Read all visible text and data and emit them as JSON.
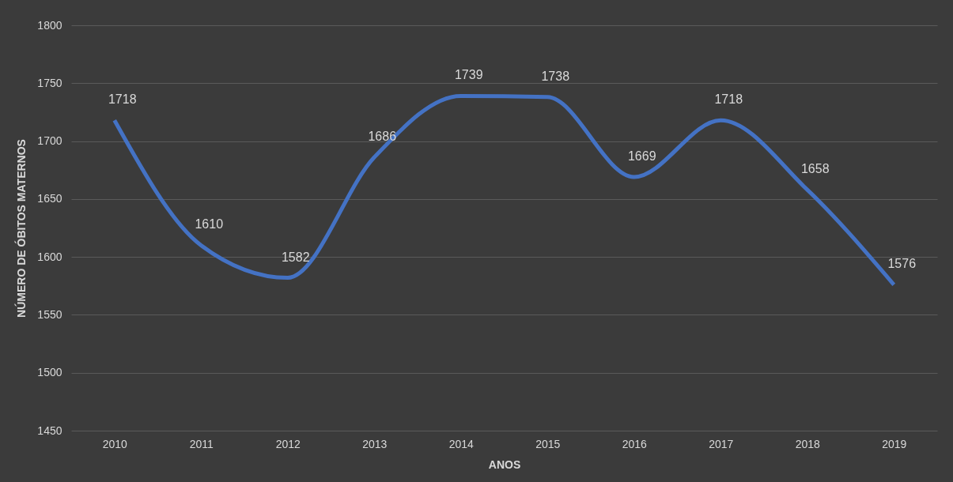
{
  "chart_data": {
    "type": "line",
    "xlabel": "ANOS",
    "ylabel": "NÚMERO DE ÓBITOS MATERNOS",
    "categories": [
      "2010",
      "2011",
      "2012",
      "2013",
      "2014",
      "2015",
      "2016",
      "2017",
      "2018",
      "2019"
    ],
    "series": [
      {
        "color": "#4472c4",
        "values": [
          1718,
          1610,
          1582,
          1686,
          1739,
          1738,
          1669,
          1718,
          1658,
          1576
        ]
      }
    ],
    "ylim": [
      1450,
      1800
    ],
    "yticks": [
      1450,
      1500,
      1550,
      1600,
      1650,
      1700,
      1750,
      1800
    ],
    "grid": "y",
    "data_labels": true,
    "marker": "none",
    "line_style": "solid"
  }
}
